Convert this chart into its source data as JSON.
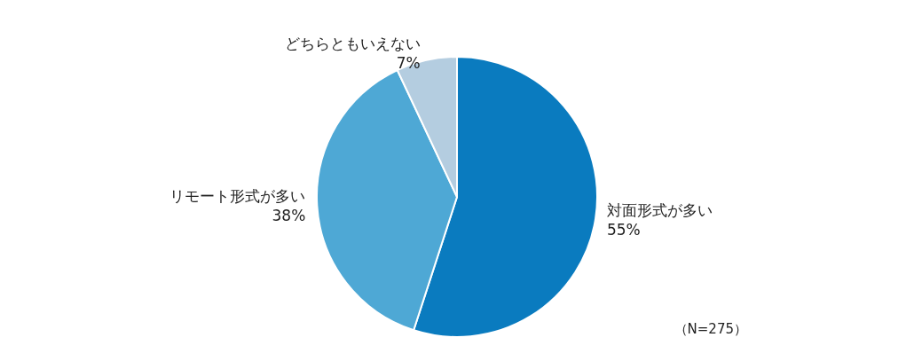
{
  "chart_data": {
    "type": "pie",
    "categories": [
      "対面形式が多い",
      "リモート形式が多い",
      "どちらともいえない"
    ],
    "values": [
      55,
      38,
      7
    ],
    "value_labels": [
      "55%",
      "38%",
      "7%"
    ],
    "colors": [
      "#0a7bbf",
      "#4ea8d5",
      "#b4cde0"
    ],
    "annotations": [
      "（N=275）"
    ],
    "legend": false
  }
}
